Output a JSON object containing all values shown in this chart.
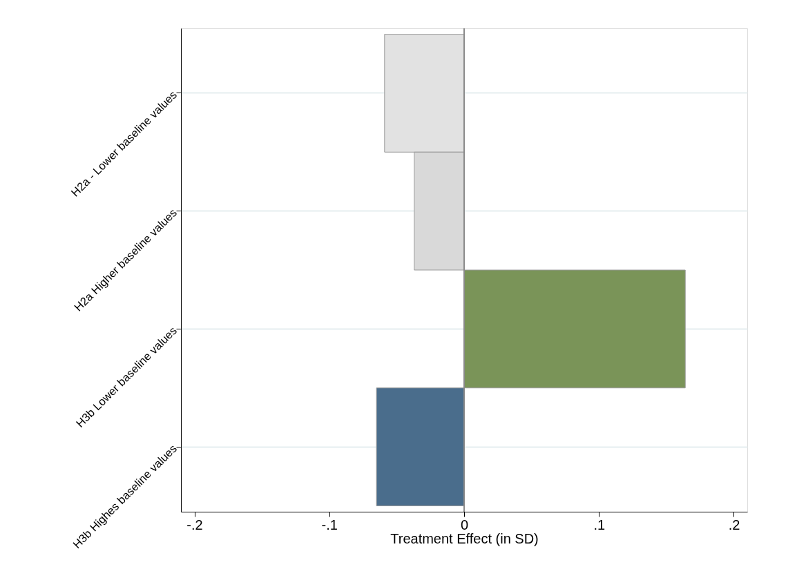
{
  "chart_data": {
    "type": "bar",
    "orientation": "horizontal",
    "categories": [
      "H2a - Lower baseline values",
      "H2a Higher baseline values",
      "H3b Lower baseline values",
      "H3b Highes baseline values"
    ],
    "values": [
      -0.059,
      -0.037,
      0.164,
      -0.065
    ],
    "colors": [
      "#e2e2e2",
      "#d9d9d9",
      "#7a9458",
      "#4a6d8c"
    ],
    "xlabel": "Treatment Effect (in SD)",
    "xlim": [
      -0.21,
      0.21
    ],
    "xticks": [
      {
        "value": -0.2,
        "label": "-.2"
      },
      {
        "value": -0.1,
        "label": "-.1"
      },
      0,
      {
        "value": 0.1,
        "label": ".1"
      },
      {
        "value": 0.2,
        "label": ".2"
      }
    ],
    "grid": "y",
    "ref_lines": [
      {
        "axis": "x",
        "value": 0,
        "color": "#8a8a8a"
      }
    ]
  }
}
